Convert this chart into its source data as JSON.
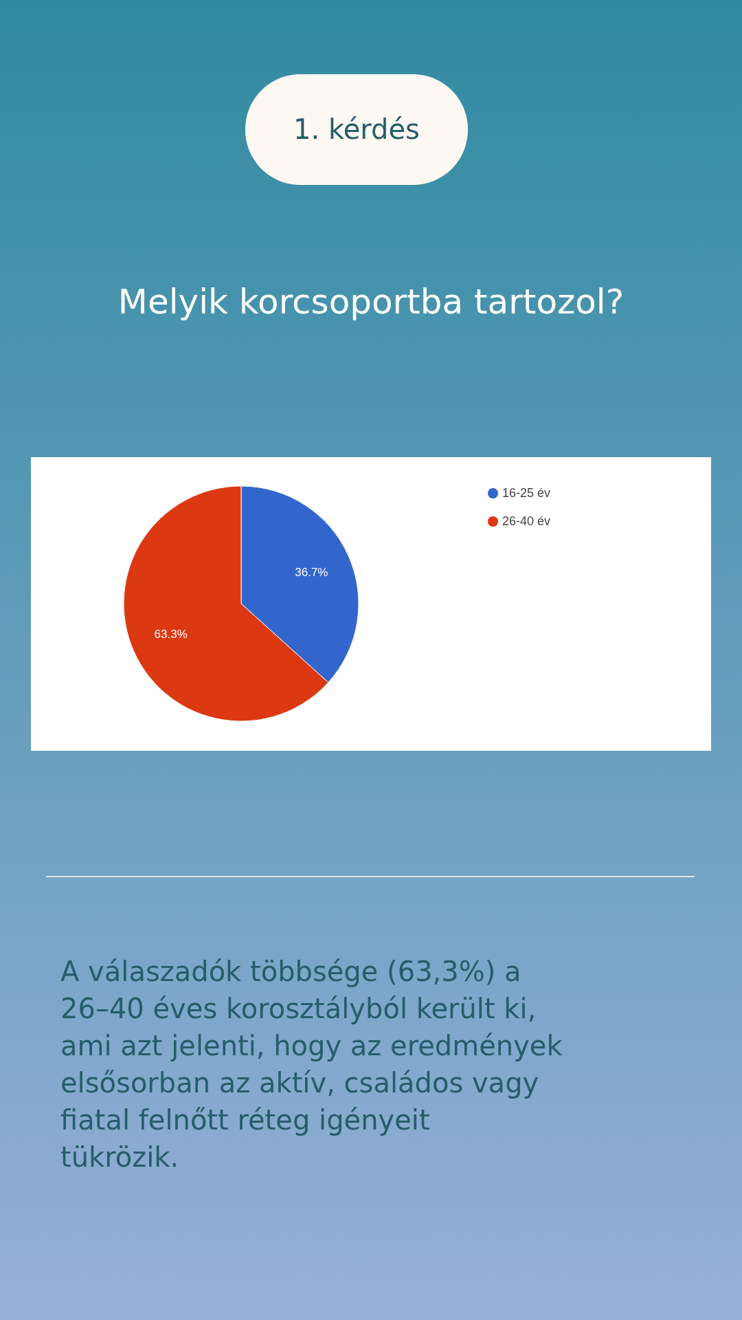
{
  "chart_data": {
    "type": "pie",
    "title": "Melyik korcsoportba tartozol?",
    "categories": [
      "16-25 év",
      "26-40 év"
    ],
    "values": [
      36.7,
      63.3
    ],
    "colors": [
      "#3366cc",
      "#dc3912"
    ],
    "value_labels": [
      "36.7%",
      "63.3%"
    ],
    "legend": "top right",
    "annotations": [
      "1. kérdés",
      "A válaszadók többsége (63,3%) a 26–40 éves korosztályból került ki, ami azt jelenti, hogy az eredmények elsősorban az aktív, családos vagy fiatal felnőtt réteg igényeit tükrözik."
    ]
  }
}
